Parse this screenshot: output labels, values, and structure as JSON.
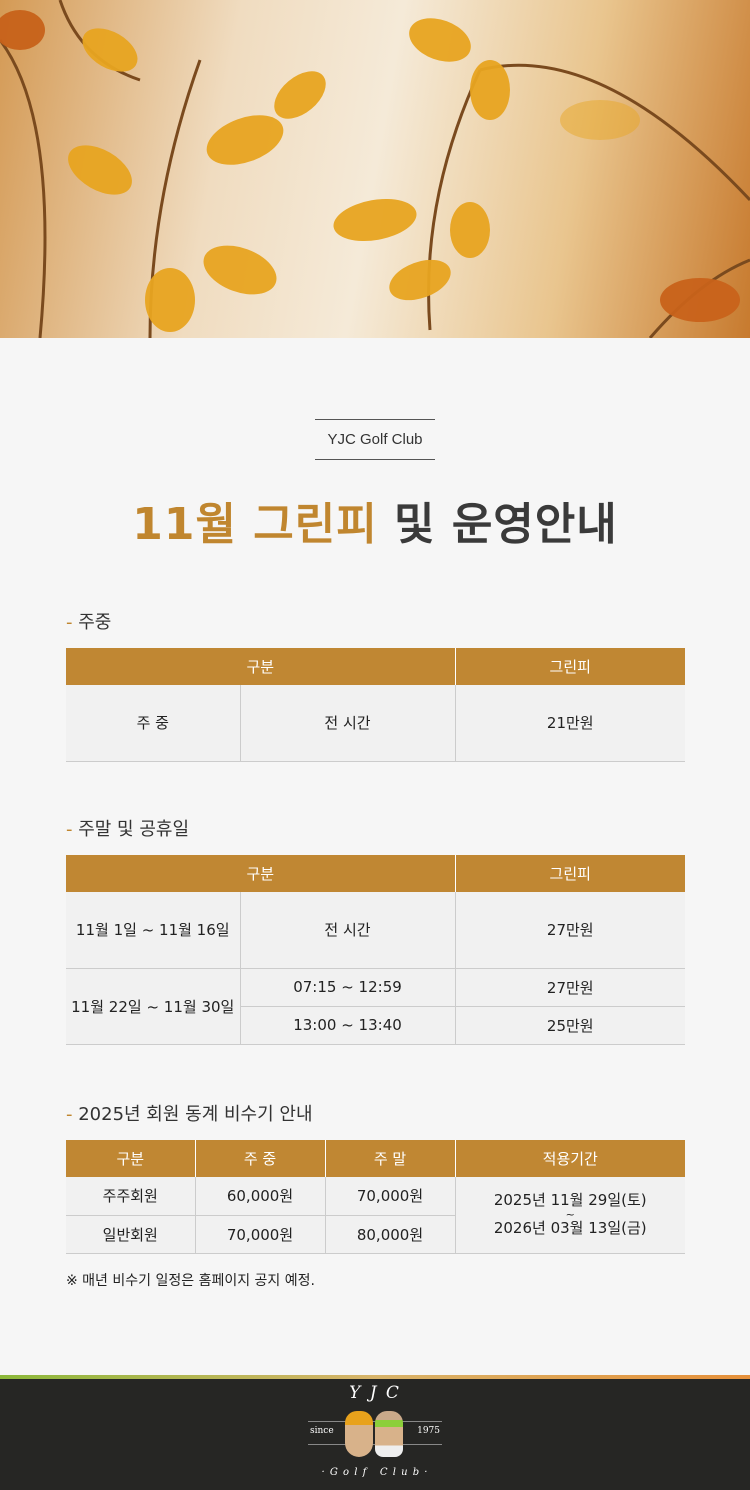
{
  "brand": "YJC Golf Club",
  "title": {
    "accent": "11월 그린피",
    "rest": " 및 운영안내"
  },
  "colors": {
    "accent": "#c08733",
    "footer_bg": "#262624"
  },
  "weekday": {
    "heading": "주중",
    "headers": [
      "구분",
      "그린피"
    ],
    "rows": [
      {
        "cat": "주 중",
        "time": "전 시간",
        "fee": "21만원"
      }
    ]
  },
  "weekend": {
    "heading": "주말 및 공휴일",
    "headers": [
      "구분",
      "그린피"
    ],
    "rows": [
      {
        "period": "11월 1일 ~ 11월 16일",
        "time": "전 시간",
        "fee": "27만원"
      },
      {
        "period": "11월 22일 ~ 11월 30일",
        "time": "07:15 ~ 12:59",
        "fee": "27만원"
      },
      {
        "time": "13:00 ~ 13:40",
        "fee": "25만원"
      }
    ]
  },
  "offseason": {
    "heading": "2025년 회원 동계 비수기 안내",
    "headers": [
      "구분",
      "주 중",
      "주 말",
      "적용기간"
    ],
    "rows": [
      {
        "type": "주주회원",
        "weekday": "60,000원",
        "weekend": "70,000원"
      },
      {
        "type": "일반회원",
        "weekday": "70,000원",
        "weekend": "80,000원"
      }
    ],
    "period": {
      "start": "2025년 11월 29일(토)",
      "sep": "~",
      "end": "2026년 03월 13일(금)"
    }
  },
  "note": "※ 매년 비수기 일정은 홈페이지 공지 예정.",
  "footer": {
    "logo_top": "Y J C",
    "since": "since",
    "year": "1975",
    "logo_bottom": "· G o l f   C l u b ·"
  }
}
